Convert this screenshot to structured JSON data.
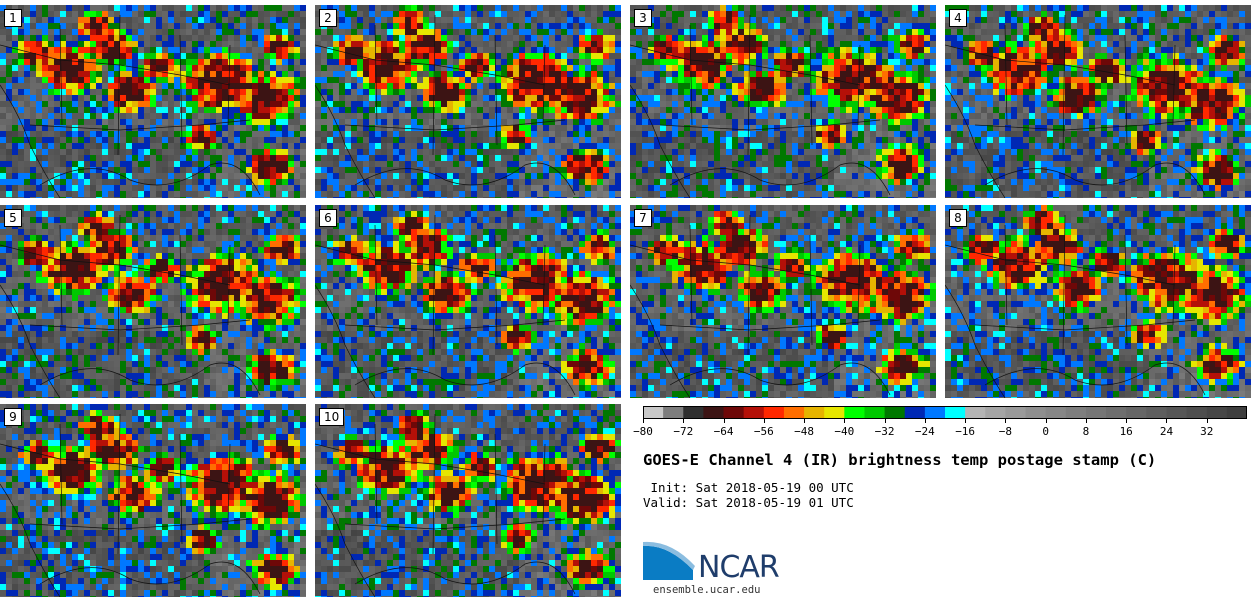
{
  "panels": [
    {
      "label": "1"
    },
    {
      "label": "2"
    },
    {
      "label": "3"
    },
    {
      "label": "4"
    },
    {
      "label": "5"
    },
    {
      "label": "6"
    },
    {
      "label": "7"
    },
    {
      "label": "8"
    },
    {
      "label": "9"
    },
    {
      "label": "10"
    }
  ],
  "colorbar": {
    "colors": [
      "#c8c8c8",
      "#7d7d7d",
      "#2f2f2f",
      "#3c1414",
      "#6e0808",
      "#b41008",
      "#ff2800",
      "#ff6e00",
      "#e6b400",
      "#e6e600",
      "#00ff00",
      "#00c800",
      "#007800",
      "#0028b4",
      "#0078ff",
      "#00ffff",
      "#b4b4b4",
      "#a5a5a5",
      "#9a9a9a",
      "#8f8f8f",
      "#878787",
      "#7e7e7e",
      "#767676",
      "#6e6e6e",
      "#666666",
      "#5e5e5e",
      "#565656",
      "#4e4e4e",
      "#464646",
      "#3e3e3e"
    ],
    "tick_labels": [
      "−80",
      "−72",
      "−64",
      "−56",
      "−48",
      "−40",
      "−32",
      "−24",
      "−16",
      "−8",
      "0",
      "8",
      "16",
      "24",
      "32"
    ]
  },
  "title": "GOES-E Channel 4 (IR) brightness temp postage stamp (C)",
  "init": " Init: Sat 2018-05-19 00 UTC",
  "valid": "Valid: Sat 2018-05-19 01 UTC",
  "logo": {
    "text": "NCAR"
  },
  "url": "ensemble.ucar.edu"
}
